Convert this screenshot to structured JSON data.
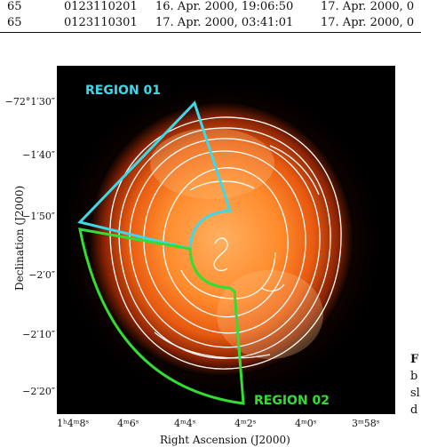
{
  "table": {
    "rows": [
      {
        "col1": "65",
        "col2": "0123110201",
        "col3": "16. Apr. 2000, 19:06:50",
        "col4": "17. Apr. 2000, 0"
      },
      {
        "col1": "65",
        "col2": "0123110301",
        "col3": "17. Apr. 2000, 03:41:01",
        "col4": "17. Apr. 2000, 0"
      }
    ]
  },
  "figure": {
    "y_ticks": [
      "−72°1′30″",
      "−1′40″",
      "−1′50″",
      "−2′0″",
      "−2′10″",
      "−2′20″"
    ],
    "x_ticks": [
      "1ʰ4ᵐ8ˢ",
      "4ᵐ6ˢ",
      "4ᵐ4ˢ",
      "4ᵐ2ˢ",
      "4ᵐ0ˢ",
      "3ᵐ58ˢ"
    ],
    "x_label": "Right Ascension (J2000)",
    "y_label": "Declination (J2000)",
    "regions": [
      {
        "label": "REGION 01",
        "color": "#3fd8e8"
      },
      {
        "label": "REGION 02",
        "color": "#33dd33"
      }
    ]
  },
  "caption_fragment": {
    "lines": [
      "F",
      "b",
      "sl",
      "d"
    ]
  }
}
